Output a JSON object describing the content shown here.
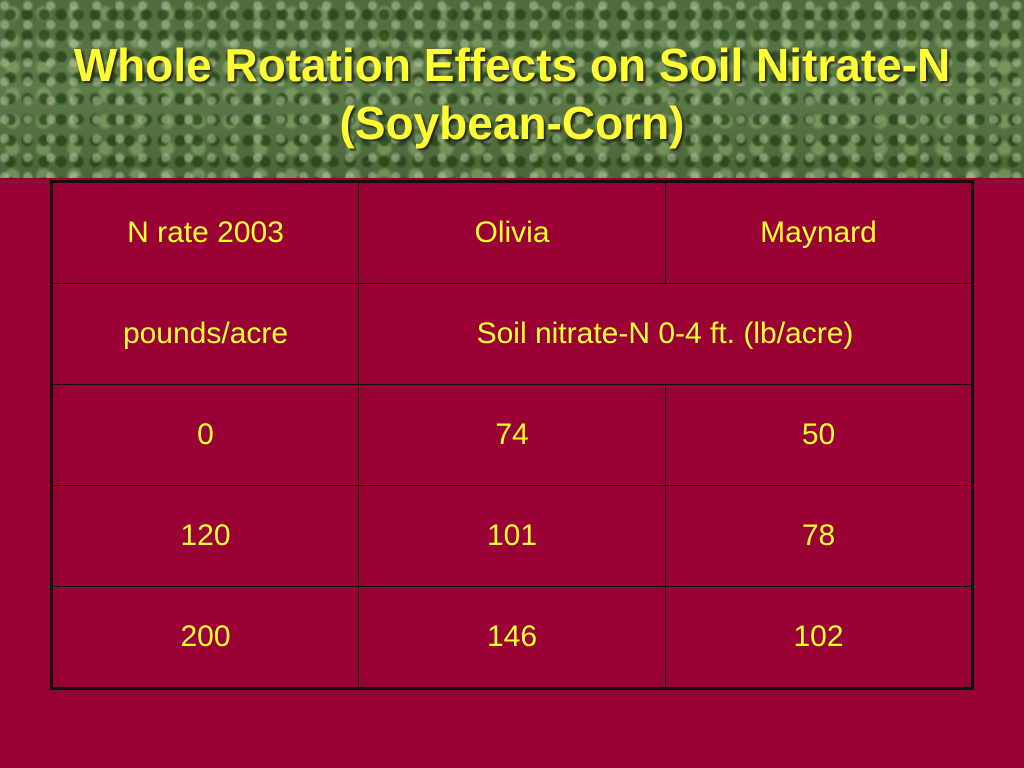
{
  "title": "Whole Rotation Effects on Soil Nitrate-N (Soybean-Corn)",
  "table": {
    "header": [
      "N rate 2003",
      "Olivia",
      "Maynard"
    ],
    "units": [
      "pounds/acre",
      "Soil nitrate-N 0-4 ft. (lb/acre)"
    ],
    "rows": [
      [
        0,
        74,
        50
      ],
      [
        120,
        101,
        78
      ],
      [
        200,
        146,
        102
      ]
    ]
  }
}
